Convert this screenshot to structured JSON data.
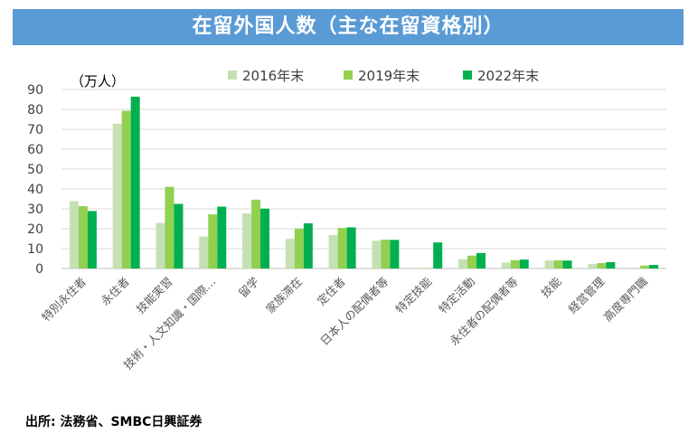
{
  "page": {
    "title": "在留外国人数（主な在留資格別）",
    "source": "出所: 法務省、SMBC日興証券"
  },
  "chart_data": {
    "type": "bar",
    "unit_label": "（万人）",
    "categories": [
      "特別永住者",
      "永住者",
      "技能実習",
      "技術・人文知識・国際…",
      "留学",
      "家族滞在",
      "定住者",
      "日本人の配偶者等",
      "特定技能",
      "特定活動",
      "永住者の配偶者等",
      "技能",
      "経営管理",
      "高度専門職"
    ],
    "series": [
      {
        "name": "2016年末",
        "color": "#c6e0b4",
        "values": [
          33.9,
          72.8,
          22.9,
          16.1,
          27.7,
          14.9,
          16.8,
          14.0,
          0,
          4.7,
          3.0,
          4.0,
          2.2,
          0.4
        ]
      },
      {
        "name": "2019年末",
        "color": "#92d050",
        "values": [
          31.3,
          79.3,
          41.1,
          27.2,
          34.6,
          20.1,
          20.4,
          14.5,
          0.2,
          6.5,
          4.2,
          4.1,
          2.7,
          1.5
        ]
      },
      {
        "name": "2022年末",
        "color": "#00b050",
        "values": [
          28.9,
          86.4,
          32.5,
          31.1,
          30.1,
          22.7,
          20.7,
          14.4,
          13.1,
          7.8,
          4.5,
          4.0,
          3.2,
          1.8
        ]
      }
    ],
    "yticks": [
      0,
      10,
      20,
      30,
      40,
      50,
      60,
      70,
      80,
      90
    ],
    "ylim": [
      0,
      90
    ],
    "grid": true,
    "legend_position": "top"
  }
}
